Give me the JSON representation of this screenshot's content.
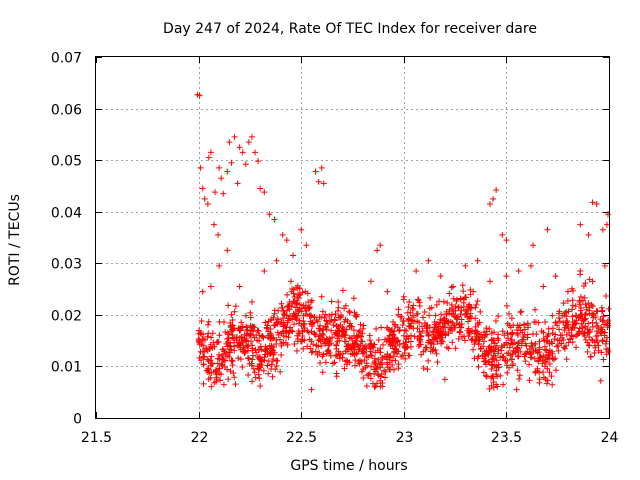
{
  "chart_data": {
    "type": "scatter",
    "title": "Day 247 of 2024, Rate Of TEC Index for receiver dare",
    "xlabel": "GPS time / hours",
    "ylabel": "ROTI / TECUs",
    "xlim": [
      21.5,
      24
    ],
    "ylim": [
      0,
      0.07
    ],
    "x_ticks": [
      21.5,
      22,
      22.5,
      23,
      23.5,
      24
    ],
    "x_tick_labels": [
      "21.5",
      "22",
      "22.5",
      "23",
      "23.5",
      "24"
    ],
    "y_ticks": [
      0,
      0.01,
      0.02,
      0.03,
      0.04,
      0.05,
      0.06,
      0.07
    ],
    "y_tick_labels": [
      "0",
      "0.01",
      "0.02",
      "0.03",
      "0.04",
      "0.05",
      "0.06",
      "0.07"
    ],
    "grid": true,
    "marker": "+",
    "series": [
      {
        "name": "ROTI",
        "color": "#ff0000",
        "points": [
          [
            21.995,
            0.0627
          ],
          [
            22.005,
            0.0625
          ],
          [
            22.01,
            0.0485
          ],
          [
            22.02,
            0.0445
          ],
          [
            22.03,
            0.0425
          ],
          [
            22.045,
            0.0415
          ],
          [
            22.05,
            0.0505
          ],
          [
            22.06,
            0.0515
          ],
          [
            22.075,
            0.0375
          ],
          [
            22.08,
            0.0438
          ],
          [
            22.095,
            0.0355
          ],
          [
            22.1,
            0.0485
          ],
          [
            22.11,
            0.0465
          ],
          [
            22.12,
            0.0435
          ],
          [
            22.14,
            0.0478
          ],
          [
            22.15,
            0.0535
          ],
          [
            22.16,
            0.0495
          ],
          [
            22.175,
            0.0545
          ],
          [
            22.19,
            0.0455
          ],
          [
            22.2,
            0.0525
          ],
          [
            22.215,
            0.0515
          ],
          [
            22.23,
            0.0492
          ],
          [
            22.245,
            0.0535
          ],
          [
            22.26,
            0.0545
          ],
          [
            22.275,
            0.0515
          ],
          [
            22.29,
            0.0498
          ],
          [
            22.3,
            0.0445
          ],
          [
            22.32,
            0.0438
          ],
          [
            22.345,
            0.0395
          ],
          [
            22.37,
            0.0385
          ],
          [
            22.41,
            0.0355
          ],
          [
            22.43,
            0.0345
          ],
          [
            22.46,
            0.0315
          ],
          [
            22.5,
            0.0365
          ],
          [
            22.525,
            0.0335
          ],
          [
            22.57,
            0.0478
          ],
          [
            22.585,
            0.0458
          ],
          [
            22.6,
            0.0485
          ],
          [
            22.61,
            0.0455
          ],
          [
            22.87,
            0.0325
          ],
          [
            22.885,
            0.0335
          ],
          [
            23.42,
            0.0415
          ],
          [
            23.435,
            0.0425
          ],
          [
            23.45,
            0.0442
          ],
          [
            23.48,
            0.0355
          ],
          [
            23.5,
            0.0345
          ],
          [
            23.63,
            0.0335
          ],
          [
            23.7,
            0.0365
          ],
          [
            23.86,
            0.0375
          ],
          [
            23.9,
            0.0355
          ],
          [
            23.92,
            0.0418
          ],
          [
            23.94,
            0.0415
          ],
          [
            23.97,
            0.0365
          ],
          [
            23.99,
            0.0375
          ],
          [
            23.995,
            0.0395
          ],
          [
            22.02,
            0.0245
          ],
          [
            22.06,
            0.0255
          ],
          [
            22.1,
            0.0295
          ],
          [
            22.14,
            0.0325
          ],
          [
            22.2,
            0.0255
          ],
          [
            22.26,
            0.0225
          ],
          [
            22.32,
            0.0285
          ],
          [
            22.38,
            0.0305
          ],
          [
            22.45,
            0.0265
          ],
          [
            22.52,
            0.0245
          ],
          [
            22.6,
            0.0235
          ],
          [
            22.68,
            0.0225
          ],
          [
            22.76,
            0.0205
          ],
          [
            22.84,
            0.0265
          ],
          [
            22.92,
            0.0245
          ],
          [
            23.0,
            0.0235
          ],
          [
            23.06,
            0.0285
          ],
          [
            23.12,
            0.0305
          ],
          [
            23.18,
            0.0275
          ],
          [
            23.24,
            0.0255
          ],
          [
            23.3,
            0.0295
          ],
          [
            23.36,
            0.0305
          ],
          [
            23.42,
            0.0265
          ],
          [
            23.5,
            0.0275
          ],
          [
            23.56,
            0.0285
          ],
          [
            23.62,
            0.0295
          ],
          [
            23.68,
            0.0255
          ],
          [
            23.74,
            0.0275
          ],
          [
            23.8,
            0.0245
          ],
          [
            23.86,
            0.0285
          ],
          [
            23.92,
            0.0265
          ],
          [
            23.98,
            0.0295
          ],
          [
            22.3,
            0.0062
          ],
          [
            22.55,
            0.0055
          ],
          [
            22.82,
            0.0062
          ],
          [
            23.45,
            0.0065
          ],
          [
            23.55,
            0.0055
          ],
          [
            23.96,
            0.0072
          ],
          [
            22.04,
            0.0092
          ],
          [
            23.2,
            0.0075
          ]
        ],
        "dense_band": {
          "x_range": [
            22.0,
            24.0
          ],
          "y_center": 0.0155,
          "y_spread": 0.0065,
          "count": 1600
        }
      }
    ]
  }
}
